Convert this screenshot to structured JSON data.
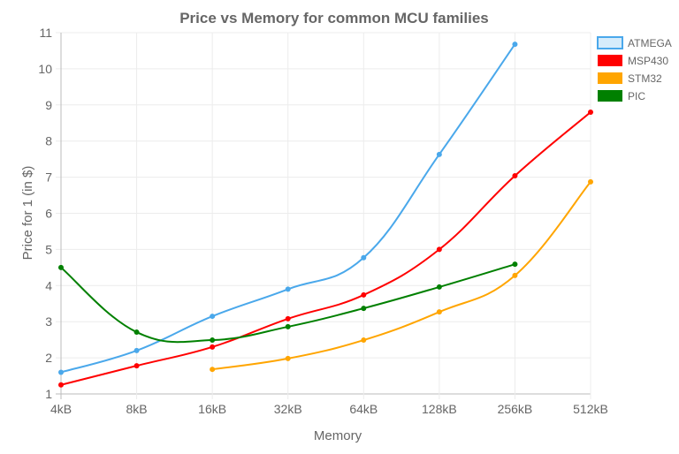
{
  "chart_data": {
    "type": "line",
    "title": "Price vs Memory for common MCU families",
    "xlabel": "Memory",
    "ylabel": "Price for 1 (in $)",
    "categories": [
      "4kB",
      "8kB",
      "16kB",
      "32kB",
      "64kB",
      "128kB",
      "256kB",
      "512kB"
    ],
    "ylim": [
      1,
      11
    ],
    "yticks": [
      1,
      2,
      3,
      4,
      5,
      6,
      7,
      8,
      9,
      10,
      11
    ],
    "grid": true,
    "legend": "right",
    "series": [
      {
        "name": "ATMEGA",
        "color": "#4aa8eb",
        "fill": "#d6ecfb",
        "values": [
          1.6,
          2.2,
          3.15,
          3.9,
          4.77,
          7.63,
          10.68,
          null
        ]
      },
      {
        "name": "MSP430",
        "color": "#ff0000",
        "fill": "#ff0000",
        "values": [
          1.25,
          1.78,
          2.3,
          3.08,
          3.74,
          5.0,
          7.04,
          8.8
        ]
      },
      {
        "name": "STM32",
        "color": "#ffa500",
        "fill": "#ffa500",
        "values": [
          null,
          null,
          1.68,
          1.98,
          2.49,
          3.27,
          4.28,
          6.87
        ]
      },
      {
        "name": "PIC",
        "color": "#008000",
        "fill": "#008000",
        "values": [
          4.5,
          2.71,
          2.49,
          2.86,
          3.37,
          3.96,
          4.59,
          null
        ]
      }
    ]
  }
}
